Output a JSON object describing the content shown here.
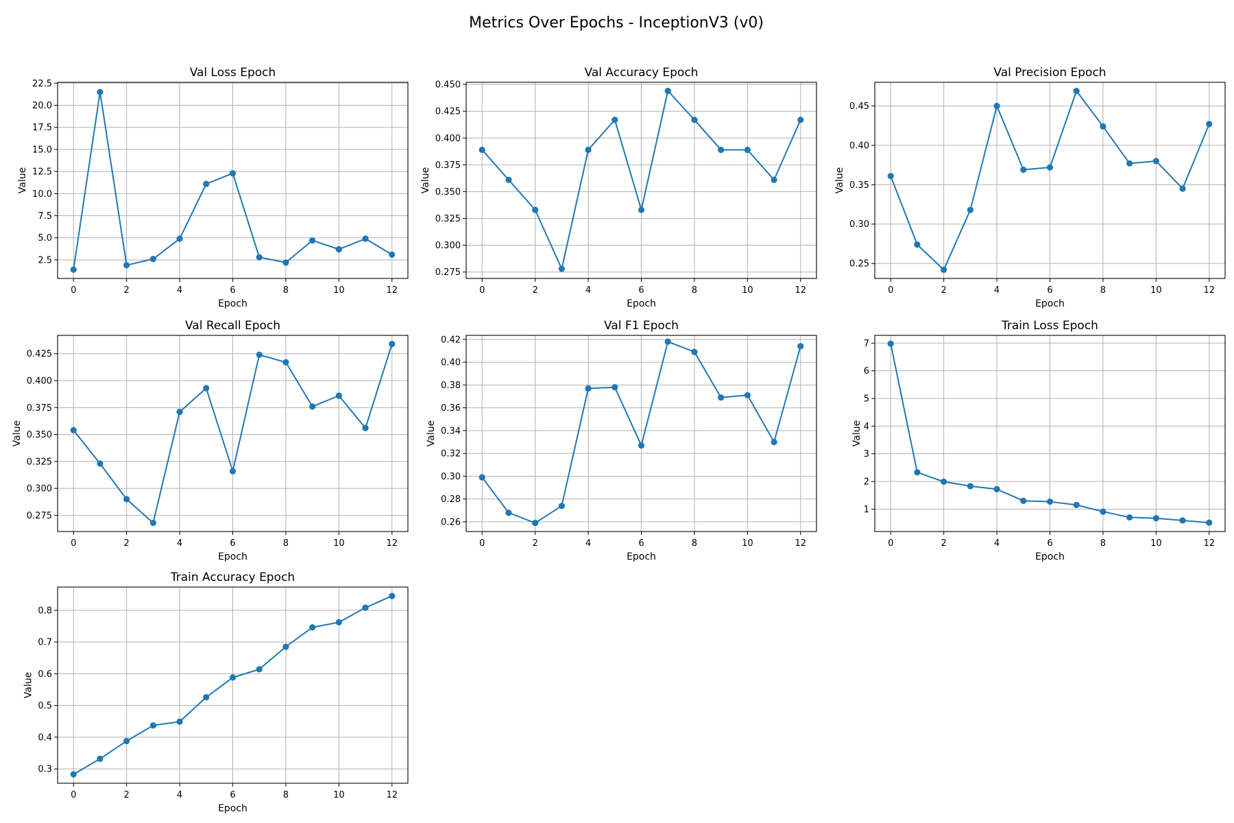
{
  "figure": {
    "title": "Metrics Over Epochs - InceptionV3 (v0)",
    "line_color": "#1f77b4",
    "grid_color": "#b0b0b0"
  },
  "chart_data": [
    {
      "type": "line",
      "title": "Val Loss Epoch",
      "xlabel": "Epoch",
      "ylabel": "Value",
      "grid": true,
      "x": [
        0,
        1,
        2,
        3,
        4,
        5,
        6,
        7,
        8,
        9,
        10,
        11,
        12
      ],
      "values": [
        1.4,
        21.5,
        1.9,
        2.6,
        4.9,
        11.1,
        12.3,
        2.8,
        2.2,
        4.7,
        3.7,
        4.9,
        3.1
      ],
      "xlim": [
        -0.6,
        12.6
      ],
      "ylim": [
        0.4,
        22.6
      ],
      "xticks": [
        0,
        2,
        4,
        6,
        8,
        10,
        12
      ],
      "yticks": [
        2.5,
        5.0,
        7.5,
        10.0,
        12.5,
        15.0,
        17.5,
        20.0,
        22.5
      ],
      "yticklabels": [
        "2.5",
        "5.0",
        "7.5",
        "10.0",
        "12.5",
        "15.0",
        "17.5",
        "20.0",
        "22.5"
      ]
    },
    {
      "type": "line",
      "title": "Val Accuracy Epoch",
      "xlabel": "Epoch",
      "ylabel": "Value",
      "grid": true,
      "x": [
        0,
        1,
        2,
        3,
        4,
        5,
        6,
        7,
        8,
        9,
        10,
        11,
        12
      ],
      "values": [
        0.389,
        0.361,
        0.333,
        0.278,
        0.389,
        0.417,
        0.333,
        0.444,
        0.417,
        0.389,
        0.389,
        0.361,
        0.417
      ],
      "xlim": [
        -0.6,
        12.6
      ],
      "ylim": [
        0.269,
        0.452
      ],
      "xticks": [
        0,
        2,
        4,
        6,
        8,
        10,
        12
      ],
      "yticks": [
        0.275,
        0.3,
        0.325,
        0.35,
        0.375,
        0.4,
        0.425,
        0.45
      ],
      "yticklabels": [
        "0.275",
        "0.300",
        "0.325",
        "0.350",
        "0.375",
        "0.400",
        "0.425",
        "0.450"
      ]
    },
    {
      "type": "line",
      "title": "Val Precision Epoch",
      "xlabel": "Epoch",
      "ylabel": "Value",
      "grid": true,
      "x": [
        0,
        1,
        2,
        3,
        4,
        5,
        6,
        7,
        8,
        9,
        10,
        11,
        12
      ],
      "values": [
        0.361,
        0.274,
        0.242,
        0.318,
        0.45,
        0.369,
        0.372,
        0.469,
        0.424,
        0.377,
        0.38,
        0.345,
        0.427
      ],
      "xlim": [
        -0.6,
        12.6
      ],
      "ylim": [
        0.231,
        0.48
      ],
      "xticks": [
        0,
        2,
        4,
        6,
        8,
        10,
        12
      ],
      "yticks": [
        0.25,
        0.3,
        0.35,
        0.4,
        0.45
      ],
      "yticklabels": [
        "0.25",
        "0.30",
        "0.35",
        "0.40",
        "0.45"
      ]
    },
    {
      "type": "line",
      "title": "Val Recall Epoch",
      "xlabel": "Epoch",
      "ylabel": "Value",
      "grid": true,
      "x": [
        0,
        1,
        2,
        3,
        4,
        5,
        6,
        7,
        8,
        9,
        10,
        11,
        12
      ],
      "values": [
        0.354,
        0.323,
        0.29,
        0.268,
        0.371,
        0.393,
        0.316,
        0.424,
        0.417,
        0.376,
        0.386,
        0.356,
        0.434
      ],
      "xlim": [
        -0.6,
        12.6
      ],
      "ylim": [
        0.26,
        0.442
      ],
      "xticks": [
        0,
        2,
        4,
        6,
        8,
        10,
        12
      ],
      "yticks": [
        0.275,
        0.3,
        0.325,
        0.35,
        0.375,
        0.4,
        0.425
      ],
      "yticklabels": [
        "0.275",
        "0.300",
        "0.325",
        "0.350",
        "0.375",
        "0.400",
        "0.425"
      ]
    },
    {
      "type": "line",
      "title": "Val F1 Epoch",
      "xlabel": "Epoch",
      "ylabel": "Value",
      "grid": true,
      "x": [
        0,
        1,
        2,
        3,
        4,
        5,
        6,
        7,
        8,
        9,
        10,
        11,
        12
      ],
      "values": [
        0.299,
        0.268,
        0.259,
        0.274,
        0.377,
        0.378,
        0.327,
        0.418,
        0.409,
        0.369,
        0.371,
        0.33,
        0.414
      ],
      "xlim": [
        -0.6,
        12.6
      ],
      "ylim": [
        0.2515,
        0.4235
      ],
      "xticks": [
        0,
        2,
        4,
        6,
        8,
        10,
        12
      ],
      "yticks": [
        0.26,
        0.28,
        0.3,
        0.32,
        0.34,
        0.36,
        0.38,
        0.4,
        0.42
      ],
      "yticklabels": [
        "0.26",
        "0.28",
        "0.30",
        "0.32",
        "0.34",
        "0.36",
        "0.38",
        "0.40",
        "0.42"
      ]
    },
    {
      "type": "line",
      "title": "Train Loss Epoch",
      "xlabel": "Epoch",
      "ylabel": "Value",
      "grid": true,
      "x": [
        0,
        1,
        2,
        3,
        4,
        5,
        6,
        7,
        8,
        9,
        10,
        11,
        12
      ],
      "values": [
        6.98,
        2.33,
        1.99,
        1.83,
        1.72,
        1.3,
        1.27,
        1.15,
        0.91,
        0.7,
        0.67,
        0.59,
        0.51
      ],
      "xlim": [
        -0.6,
        12.6
      ],
      "ylim": [
        0.19,
        7.28
      ],
      "xticks": [
        0,
        2,
        4,
        6,
        8,
        10,
        12
      ],
      "yticks": [
        1,
        2,
        3,
        4,
        5,
        6,
        7
      ],
      "yticklabels": [
        "1",
        "2",
        "3",
        "4",
        "5",
        "6",
        "7"
      ]
    },
    {
      "type": "line",
      "title": "Train Accuracy Epoch",
      "xlabel": "Epoch",
      "ylabel": "Value",
      "grid": true,
      "x": [
        0,
        1,
        2,
        3,
        4,
        5,
        6,
        7,
        8,
        9,
        10,
        11,
        12
      ],
      "values": [
        0.283,
        0.332,
        0.388,
        0.437,
        0.449,
        0.526,
        0.588,
        0.614,
        0.685,
        0.746,
        0.762,
        0.808,
        0.845
      ],
      "xlim": [
        -0.6,
        12.6
      ],
      "ylim": [
        0.255,
        0.873
      ],
      "xticks": [
        0,
        2,
        4,
        6,
        8,
        10,
        12
      ],
      "yticks": [
        0.3,
        0.4,
        0.5,
        0.6,
        0.7,
        0.8
      ],
      "yticklabels": [
        "0.3",
        "0.4",
        "0.5",
        "0.6",
        "0.7",
        "0.8"
      ]
    }
  ]
}
